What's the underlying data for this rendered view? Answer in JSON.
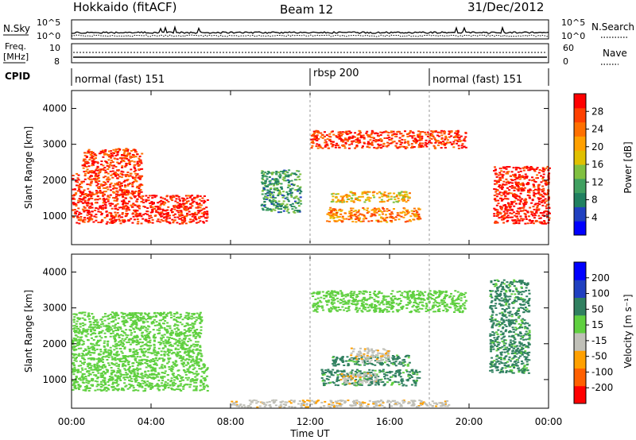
{
  "header": {
    "title": "Hokkaido (fitACF)",
    "beam": "Beam 12",
    "date": "31/Dec/2012"
  },
  "panels": {
    "nsky_label": "N.Sky",
    "nsearch_label": "N.Search",
    "nsky_ticks": [
      "10^5",
      "10^0"
    ],
    "nsearch_ticks": [
      "10^5",
      "10^0"
    ],
    "freq_label_1": "Freq.",
    "freq_label_2": "[MHz]",
    "freq_ticks": [
      "10",
      "8"
    ],
    "nave_label": "Nave",
    "nave_ticks": [
      "60",
      "0"
    ],
    "cpid_label": "CPID",
    "cpid_segments": [
      {
        "label": "normal (fast) 151",
        "start_h": 0,
        "end_h": 12
      },
      {
        "label": "rbsp 200",
        "start_h": 12,
        "end_h": 18
      },
      {
        "label": "normal (fast) 151",
        "start_h": 18,
        "end_h": 24
      }
    ]
  },
  "colorbars": {
    "power": {
      "title": "Power [dB]",
      "ticks": [
        "28",
        "24",
        "20",
        "16",
        "12",
        "8",
        "4"
      ],
      "colors": [
        "#0000ff",
        "#2040c0",
        "#208060",
        "#40a060",
        "#80c040",
        "#e0c000",
        "#ffa000",
        "#ff7000",
        "#ff4000",
        "#ff0000"
      ]
    },
    "velocity": {
      "title": "Velocity [m s⁻¹]",
      "ticks": [
        "200",
        "100",
        "50",
        "15",
        "-15",
        "-50",
        "-100",
        "-200"
      ],
      "colors": [
        "#ff0000",
        "#ff6000",
        "#ffa000",
        "#c0c0b8",
        "#60d040",
        "#308060",
        "#2040c0",
        "#0000ff"
      ]
    }
  },
  "chart_data": [
    {
      "type": "heatmap",
      "title": "",
      "xlabel": "Time UT",
      "ylabel": "Slant Range [km]",
      "x_ticks": [
        "00:00",
        "04:00",
        "08:00",
        "12:00",
        "16:00",
        "20:00",
        "00:00"
      ],
      "xlim_hours": [
        0,
        24
      ],
      "y_ticks": [
        1000,
        2000,
        3000,
        4000
      ],
      "ylim": [
        200,
        4500
      ],
      "quantity": "Power [dB]",
      "clim": [
        0,
        30
      ],
      "echo_regions": [
        {
          "t0": 0.0,
          "t1": 6.8,
          "r0": 800,
          "r1": 1600,
          "power": 28
        },
        {
          "t0": 0.0,
          "t1": 3.5,
          "r0": 1600,
          "r1": 2200,
          "power": 26
        },
        {
          "t0": 0.5,
          "t1": 3.5,
          "r0": 2200,
          "r1": 2900,
          "power": 26
        },
        {
          "t0": 12.0,
          "t1": 19.8,
          "r0": 2900,
          "r1": 3400,
          "power": 26
        },
        {
          "t0": 12.8,
          "t1": 17.5,
          "r0": 850,
          "r1": 1250,
          "power": 22
        },
        {
          "t0": 13.0,
          "t1": 17.0,
          "r0": 1400,
          "r1": 1700,
          "power": 18
        },
        {
          "t0": 9.5,
          "t1": 11.5,
          "r0": 1100,
          "r1": 2300,
          "power": 10
        },
        {
          "t0": 21.2,
          "t1": 24.0,
          "r0": 800,
          "r1": 2400,
          "power": 28
        }
      ]
    },
    {
      "type": "heatmap",
      "title": "",
      "xlabel": "Time UT",
      "ylabel": "Slant Range [km]",
      "x_ticks": [
        "00:00",
        "04:00",
        "08:00",
        "12:00",
        "16:00",
        "20:00",
        "00:00"
      ],
      "xlim_hours": [
        0,
        24
      ],
      "y_ticks": [
        1000,
        2000,
        3000,
        4000
      ],
      "ylim": [
        200,
        4500
      ],
      "quantity": "Velocity [m s⁻¹]",
      "clim": [
        -200,
        200
      ],
      "echo_regions": [
        {
          "t0": 0.0,
          "t1": 6.8,
          "r0": 700,
          "r1": 1600,
          "velocity": 0
        },
        {
          "t0": 0.0,
          "t1": 6.5,
          "r0": 1600,
          "r1": 2900,
          "velocity": 0
        },
        {
          "t0": 12.0,
          "t1": 19.8,
          "r0": 2900,
          "r1": 3500,
          "velocity": 0
        },
        {
          "t0": 12.5,
          "t1": 17.5,
          "r0": 850,
          "r1": 1300,
          "velocity": 25
        },
        {
          "t0": 13.5,
          "t1": 15.5,
          "r0": 900,
          "r1": 1200,
          "velocity": -40
        },
        {
          "t0": 13.0,
          "t1": 17.0,
          "r0": 1400,
          "r1": 1700,
          "velocity": 25
        },
        {
          "t0": 14.0,
          "t1": 16.0,
          "r0": 1500,
          "r1": 1900,
          "velocity": -40
        },
        {
          "t0": 21.0,
          "t1": 23.0,
          "r0": 1200,
          "r1": 3800,
          "velocity": 25
        },
        {
          "t0": 8.0,
          "t1": 19.0,
          "r0": 250,
          "r1": 450,
          "velocity": -40
        }
      ]
    }
  ]
}
